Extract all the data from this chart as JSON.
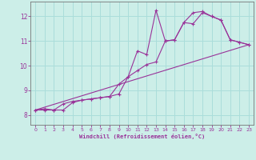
{
  "xlabel": "Windchill (Refroidissement éolien,°C)",
  "bg_color": "#cceee8",
  "grid_color": "#aaddda",
  "line_color": "#993399",
  "xlim": [
    -0.5,
    23.5
  ],
  "ylim": [
    7.6,
    12.6
  ],
  "xticks": [
    0,
    1,
    2,
    3,
    4,
    5,
    6,
    7,
    8,
    9,
    10,
    11,
    12,
    13,
    14,
    15,
    16,
    17,
    18,
    19,
    20,
    21,
    22,
    23
  ],
  "yticks": [
    8,
    9,
    10,
    11,
    12
  ],
  "series1_x": [
    0,
    1,
    2,
    3,
    4,
    5,
    6,
    7,
    8,
    9,
    10,
    11,
    12,
    13,
    14,
    15,
    16,
    17,
    18,
    19,
    20,
    21,
    22,
    23
  ],
  "series1_y": [
    8.2,
    8.25,
    8.2,
    8.45,
    8.55,
    8.6,
    8.65,
    8.7,
    8.75,
    9.25,
    9.55,
    10.6,
    10.45,
    12.25,
    11.0,
    11.05,
    11.75,
    12.15,
    12.2,
    12.0,
    11.85,
    11.05,
    10.95,
    10.85
  ],
  "series2_x": [
    0,
    1,
    2,
    3,
    4,
    5,
    6,
    7,
    8,
    9,
    10,
    11,
    12,
    13,
    14,
    15,
    16,
    17,
    18,
    19,
    20,
    21,
    22,
    23
  ],
  "series2_y": [
    8.2,
    8.2,
    8.2,
    8.2,
    8.5,
    8.6,
    8.65,
    8.7,
    8.75,
    8.85,
    9.55,
    9.8,
    10.05,
    10.15,
    11.0,
    11.05,
    11.75,
    11.7,
    12.15,
    12.0,
    11.85,
    11.05,
    10.95,
    10.85
  ],
  "series3_x": [
    0,
    23
  ],
  "series3_y": [
    8.2,
    10.85
  ]
}
